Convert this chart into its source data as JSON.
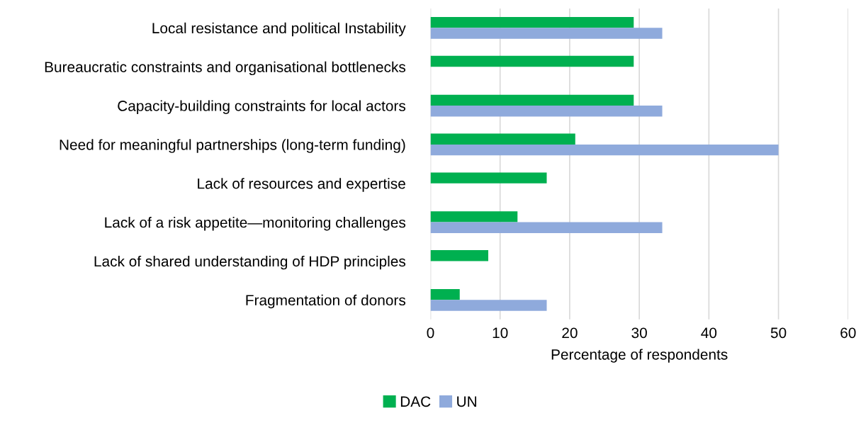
{
  "chart_data": {
    "type": "bar",
    "orientation": "horizontal",
    "xlabel": "Percentage of respondents",
    "categories": [
      "Local resistance and political Instability",
      "Bureaucratic constraints and organisational bottlenecks",
      "Capacity-building constraints for local actors",
      "Need for meaningful partnerships (long-term funding)",
      "Lack of resources and expertise",
      "Lack of a risk appetite—monitoring challenges",
      "Lack of shared understanding of HDP principles",
      "Fragmentation of donors"
    ],
    "series": [
      {
        "name": "DAC",
        "color": "#00b050",
        "values": [
          29.2,
          29.2,
          29.2,
          20.8,
          16.7,
          12.5,
          8.3,
          4.2
        ]
      },
      {
        "name": "UN",
        "color": "#8faadc",
        "values": [
          33.3,
          null,
          33.3,
          50,
          null,
          33.3,
          null,
          16.7
        ]
      }
    ],
    "xlim": [
      0,
      60
    ],
    "xticks": [
      0,
      10,
      20,
      30,
      40,
      50,
      60
    ],
    "grid": "x",
    "legend": "bottom"
  }
}
